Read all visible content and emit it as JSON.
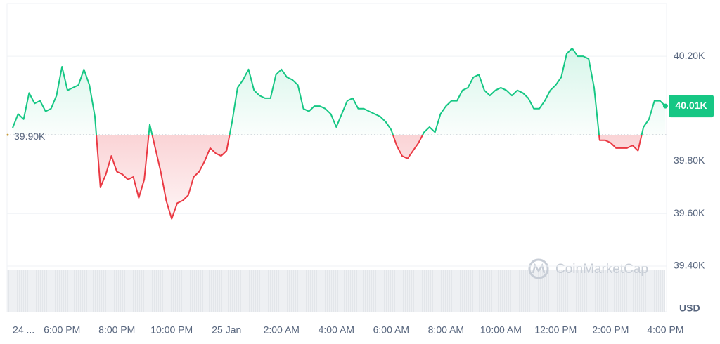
{
  "chart_data": {
    "type": "line",
    "categories": [
      null,
      null,
      "24 ...",
      null,
      null,
      null,
      null,
      null,
      null,
      "6:00 PM",
      null,
      null,
      null,
      null,
      null,
      null,
      null,
      null,
      null,
      "8:00 PM",
      null,
      null,
      null,
      null,
      null,
      null,
      null,
      null,
      null,
      "10:00 PM",
      null,
      null,
      null,
      null,
      null,
      null,
      null,
      null,
      null,
      "25 Jan",
      null,
      null,
      null,
      null,
      null,
      null,
      null,
      null,
      null,
      "2:00 AM",
      null,
      null,
      null,
      null,
      null,
      null,
      null,
      null,
      null,
      "4:00 AM",
      null,
      null,
      null,
      null,
      null,
      null,
      null,
      null,
      null,
      "6:00 AM",
      null,
      null,
      null,
      null,
      null,
      null,
      null,
      null,
      null,
      "8:00 AM",
      null,
      null,
      null,
      null,
      null,
      null,
      null,
      null,
      null,
      "10:00 AM",
      null,
      null,
      null,
      null,
      null,
      null,
      null,
      null,
      null,
      "12:00 PM",
      null,
      null,
      null,
      null,
      null,
      null,
      null,
      null,
      null,
      "2:00 PM",
      null,
      null,
      null,
      null,
      null,
      null,
      null,
      null,
      null,
      "4:00 PM"
    ],
    "values": [
      39.927,
      39.98,
      39.96,
      40.06,
      40.02,
      40.03,
      39.99,
      40.0,
      40.05,
      40.16,
      40.07,
      40.08,
      40.09,
      40.15,
      40.09,
      39.97,
      39.7,
      39.75,
      39.82,
      39.76,
      39.75,
      39.73,
      39.74,
      39.66,
      39.73,
      39.94,
      39.85,
      39.76,
      39.65,
      39.58,
      39.64,
      39.65,
      39.67,
      39.74,
      39.76,
      39.8,
      39.85,
      39.83,
      39.82,
      39.84,
      39.95,
      40.08,
      40.11,
      40.15,
      40.07,
      40.05,
      40.04,
      40.04,
      40.13,
      40.15,
      40.12,
      40.11,
      40.09,
      40.0,
      39.99,
      40.01,
      40.01,
      40.0,
      39.98,
      39.93,
      39.98,
      40.03,
      40.04,
      40.0,
      40.0,
      39.99,
      39.98,
      39.97,
      39.95,
      39.92,
      39.86,
      39.82,
      39.81,
      39.84,
      39.87,
      39.91,
      39.93,
      39.91,
      39.98,
      40.01,
      40.03,
      40.03,
      40.07,
      40.08,
      40.12,
      40.13,
      40.07,
      40.05,
      40.07,
      40.08,
      40.07,
      40.05,
      40.07,
      40.06,
      40.04,
      40.0,
      40.0,
      40.03,
      40.07,
      40.09,
      40.12,
      40.21,
      40.23,
      40.2,
      40.2,
      40.19,
      40.08,
      39.88,
      39.88,
      39.87,
      39.85,
      39.85,
      39.85,
      39.86,
      39.84,
      39.93,
      39.96,
      40.03,
      40.03,
      40.01
    ],
    "ylim": [
      39.226,
      40.401
    ],
    "yticks": [
      {
        "value": 40.2,
        "label": "40.20K"
      },
      {
        "value": 39.8,
        "label": "39.80K"
      },
      {
        "value": 39.6,
        "label": "39.60K"
      },
      {
        "value": 39.4,
        "label": "39.40K"
      }
    ],
    "grid": true,
    "baseline": {
      "value": 39.9,
      "label": "39.90K"
    },
    "last_price": {
      "value": 40.01,
      "label": "40.01K"
    },
    "colors": {
      "above": "#16c784",
      "below": "#ea3943"
    },
    "currency": "USD",
    "watermark": "CoinMarketCap"
  }
}
